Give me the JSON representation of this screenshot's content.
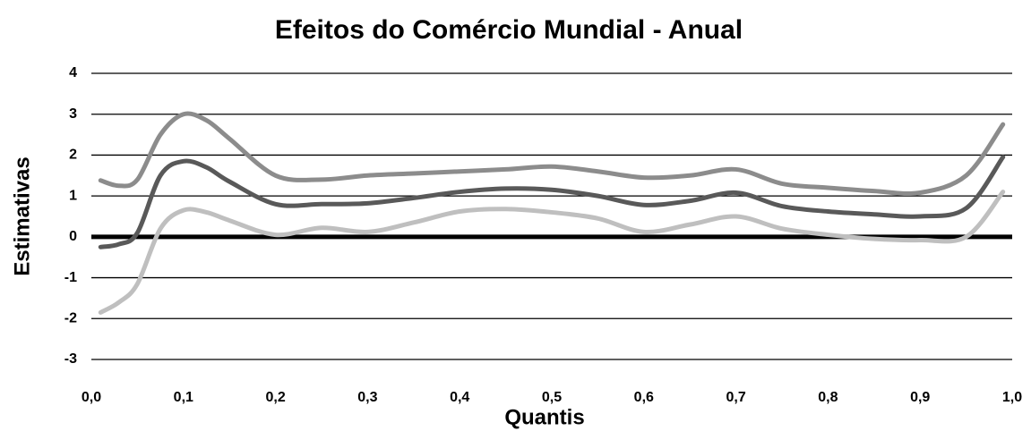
{
  "chart_data": {
    "type": "line",
    "title": "Efeitos do Comércio Mundial - Anual",
    "ylabel": "Estimativas",
    "xlabel": "Quantis",
    "x": [
      0.01,
      0.03,
      0.05,
      0.075,
      0.1,
      0.125,
      0.15,
      0.2,
      0.25,
      0.3,
      0.35,
      0.4,
      0.45,
      0.5,
      0.55,
      0.6,
      0.65,
      0.7,
      0.75,
      0.8,
      0.85,
      0.9,
      0.95,
      0.99
    ],
    "series": [
      {
        "color": "#8c8c8c",
        "values": [
          1.38,
          1.25,
          1.4,
          2.5,
          3.0,
          2.85,
          2.4,
          1.5,
          1.4,
          1.5,
          1.55,
          1.6,
          1.65,
          1.72,
          1.6,
          1.45,
          1.5,
          1.65,
          1.3,
          1.2,
          1.12,
          1.08,
          1.5,
          2.75
        ]
      },
      {
        "color": "#595959",
        "values": [
          -0.25,
          -0.18,
          0.1,
          1.5,
          1.85,
          1.7,
          1.35,
          0.8,
          0.8,
          0.82,
          0.95,
          1.1,
          1.18,
          1.15,
          1.0,
          0.78,
          0.88,
          1.08,
          0.75,
          0.62,
          0.55,
          0.5,
          0.7,
          1.95
        ]
      },
      {
        "color": "#bfbfbf",
        "values": [
          -1.85,
          -1.6,
          -1.15,
          0.2,
          0.65,
          0.6,
          0.4,
          0.05,
          0.22,
          0.12,
          0.35,
          0.62,
          0.68,
          0.6,
          0.45,
          0.12,
          0.3,
          0.5,
          0.2,
          0.05,
          -0.05,
          -0.08,
          0.0,
          1.1
        ]
      }
    ],
    "xlim": [
      0,
      1
    ],
    "xticks": [
      {
        "value": 0,
        "label": "0,0"
      },
      {
        "value": 0.1,
        "label": "0,1"
      },
      {
        "value": 0.2,
        "label": "0,2"
      },
      {
        "value": 0.3,
        "label": "0,3"
      },
      {
        "value": 0.4,
        "label": "0,4"
      },
      {
        "value": 0.5,
        "label": "0,5"
      },
      {
        "value": 0.6,
        "label": "0,6"
      },
      {
        "value": 0.7,
        "label": "0,7"
      },
      {
        "value": 0.8,
        "label": "0,8"
      },
      {
        "value": 0.9,
        "label": "0,9"
      },
      {
        "value": 1,
        "label": "1,0"
      }
    ],
    "ylim": [
      -3,
      4
    ],
    "yticks": [
      -3,
      -2,
      -1,
      0,
      1,
      2,
      3,
      4
    ],
    "grid": true
  }
}
